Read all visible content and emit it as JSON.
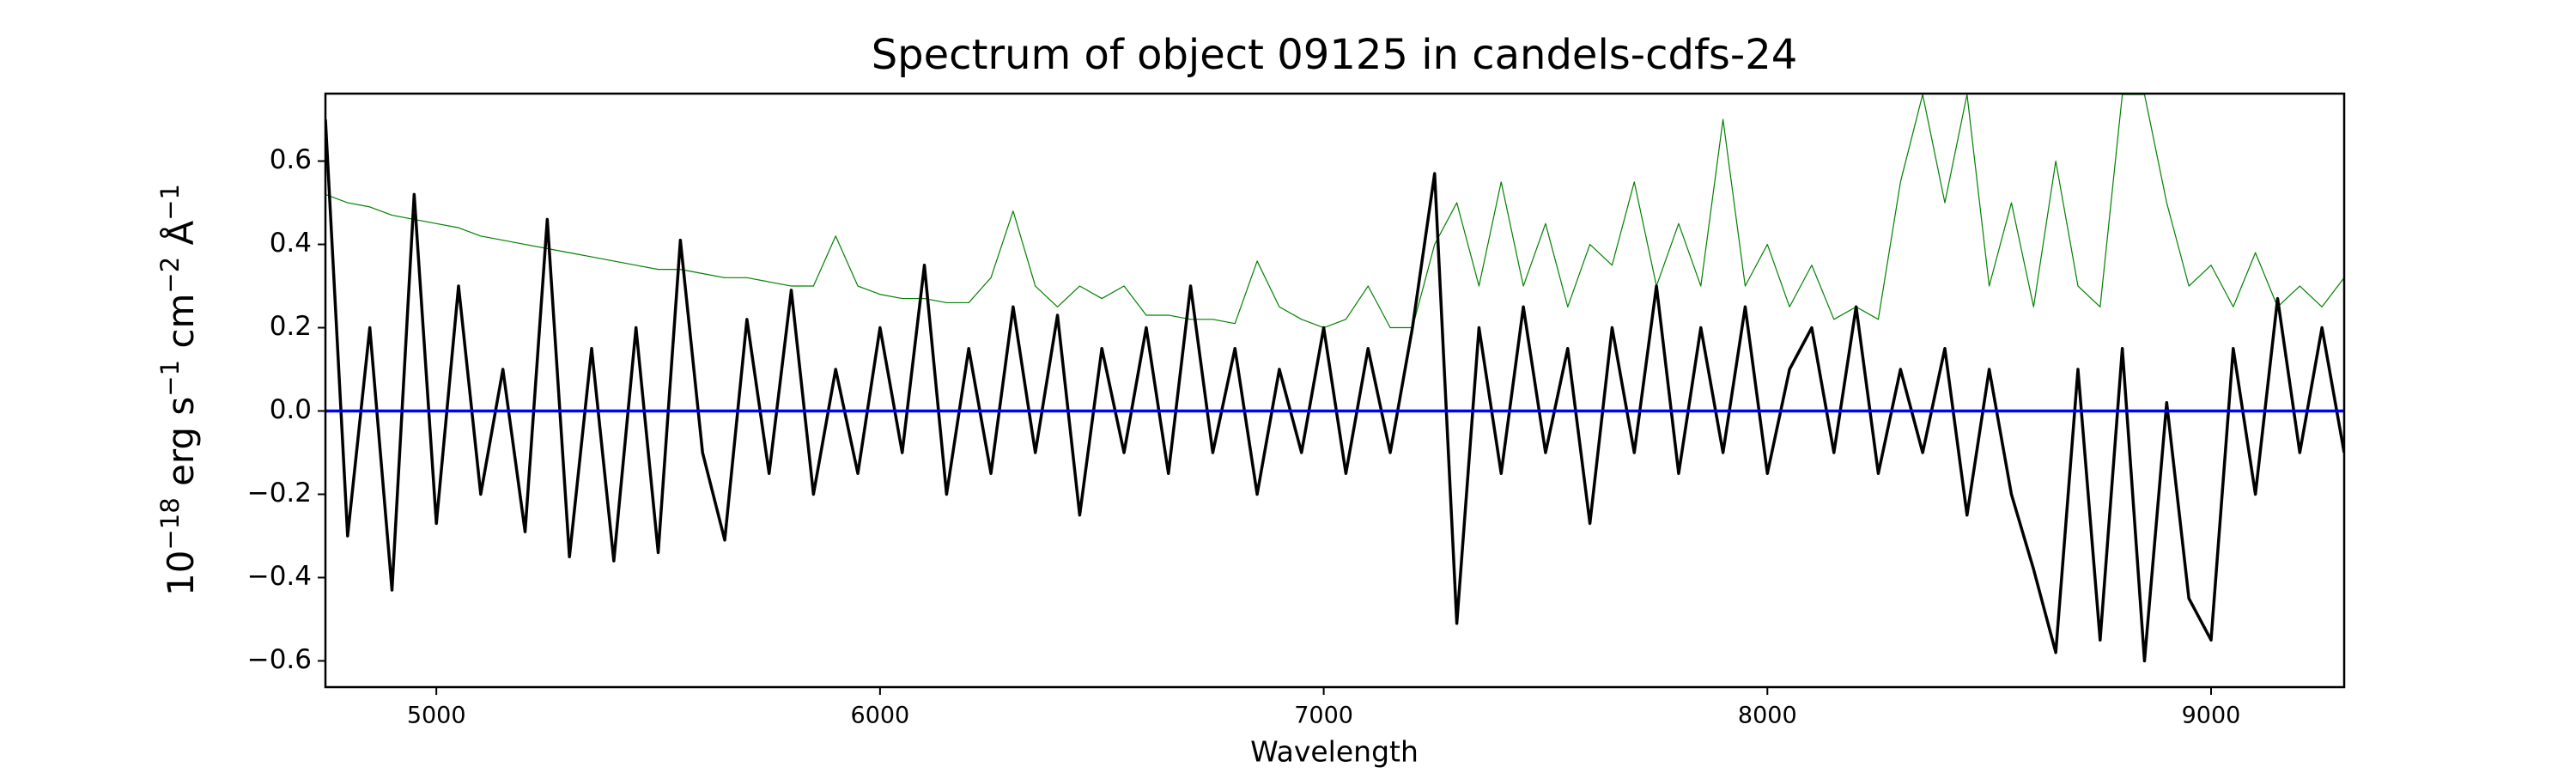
{
  "chart_data": {
    "type": "line",
    "title": "Spectrum of object 09125 in candels-cdfs-24",
    "xlabel": "Wavelength",
    "ylabel_parts": [
      "10",
      "−18",
      " erg s",
      "−1",
      " cm",
      "−2",
      " Å",
      "−1"
    ],
    "xlim": [
      4750,
      9300
    ],
    "ylim": [
      -0.663,
      0.762
    ],
    "xticks": [
      5000,
      6000,
      7000,
      8000,
      9000
    ],
    "yticks": [
      {
        "value": -0.6,
        "label": "−0.6"
      },
      {
        "value": -0.4,
        "label": "−0.4"
      },
      {
        "value": -0.2,
        "label": "−0.2"
      },
      {
        "value": 0.0,
        "label": "0.0"
      },
      {
        "value": 0.2,
        "label": "0.2"
      },
      {
        "value": 0.4,
        "label": "0.4"
      },
      {
        "value": 0.6,
        "label": "0.6"
      }
    ],
    "x": [
      4750,
      4800,
      4850,
      4900,
      4950,
      5000,
      5050,
      5100,
      5150,
      5200,
      5250,
      5300,
      5350,
      5400,
      5450,
      5500,
      5550,
      5600,
      5650,
      5700,
      5750,
      5800,
      5850,
      5900,
      5950,
      6000,
      6050,
      6100,
      6150,
      6200,
      6250,
      6300,
      6350,
      6400,
      6450,
      6500,
      6550,
      6600,
      6650,
      6700,
      6750,
      6800,
      6850,
      6900,
      6950,
      7000,
      7050,
      7100,
      7150,
      7200,
      7250,
      7300,
      7350,
      7400,
      7450,
      7500,
      7550,
      7600,
      7650,
      7700,
      7750,
      7800,
      7850,
      7900,
      7950,
      8000,
      8050,
      8100,
      8150,
      8200,
      8250,
      8300,
      8350,
      8400,
      8450,
      8500,
      8550,
      8600,
      8650,
      8700,
      8750,
      8800,
      8850,
      8900,
      8950,
      9000,
      9050,
      9100,
      9150,
      9200,
      9250,
      9300
    ],
    "series": [
      {
        "color": "#008000",
        "width": 1.2,
        "values": [
          0.52,
          0.5,
          0.49,
          0.47,
          0.46,
          0.45,
          0.44,
          0.42,
          0.41,
          0.4,
          0.39,
          0.38,
          0.37,
          0.36,
          0.35,
          0.34,
          0.34,
          0.33,
          0.32,
          0.32,
          0.31,
          0.3,
          0.3,
          0.42,
          0.3,
          0.28,
          0.27,
          0.27,
          0.26,
          0.26,
          0.32,
          0.48,
          0.3,
          0.25,
          0.3,
          0.27,
          0.3,
          0.23,
          0.23,
          0.22,
          0.22,
          0.21,
          0.36,
          0.25,
          0.22,
          0.2,
          0.22,
          0.3,
          0.2,
          0.2,
          0.4,
          0.5,
          0.3,
          0.55,
          0.3,
          0.45,
          0.25,
          0.4,
          0.35,
          0.55,
          0.3,
          0.45,
          0.3,
          0.7,
          0.3,
          0.4,
          0.25,
          0.35,
          0.22,
          0.25,
          0.22,
          0.55,
          0.76,
          0.5,
          0.76,
          0.3,
          0.5,
          0.25,
          0.6,
          0.3,
          0.25,
          0.76,
          0.76,
          0.5,
          0.3,
          0.35,
          0.25,
          0.38,
          0.25,
          0.3,
          0.25,
          0.32
        ]
      },
      {
        "color": "#000000",
        "width": 3.5,
        "values": [
          0.7,
          -0.3,
          0.2,
          -0.43,
          0.52,
          -0.27,
          0.3,
          -0.2,
          0.1,
          -0.29,
          0.46,
          -0.35,
          0.15,
          -0.36,
          0.2,
          -0.34,
          0.41,
          -0.1,
          -0.31,
          0.22,
          -0.15,
          0.29,
          -0.2,
          0.1,
          -0.15,
          0.2,
          -0.1,
          0.35,
          -0.2,
          0.15,
          -0.15,
          0.25,
          -0.1,
          0.23,
          -0.25,
          0.15,
          -0.1,
          0.2,
          -0.15,
          0.3,
          -0.1,
          0.15,
          -0.2,
          0.1,
          -0.1,
          0.2,
          -0.15,
          0.15,
          -0.1,
          0.2,
          0.57,
          -0.51,
          0.2,
          -0.15,
          0.25,
          -0.1,
          0.15,
          -0.27,
          0.2,
          -0.1,
          0.3,
          -0.15,
          0.2,
          -0.1,
          0.25,
          -0.15,
          0.1,
          0.2,
          -0.1,
          0.25,
          -0.15,
          0.1,
          -0.1,
          0.15,
          -0.25,
          0.1,
          -0.2,
          -0.38,
          -0.58,
          0.1,
          -0.55,
          0.15,
          -0.6,
          0.02,
          -0.45,
          -0.55,
          0.15,
          -0.2,
          0.27,
          -0.1,
          0.2,
          -0.1
        ]
      },
      {
        "color": "#0000ff",
        "width": 3.5,
        "x": [
          4750,
          9300
        ],
        "values": [
          0,
          0
        ]
      }
    ]
  }
}
